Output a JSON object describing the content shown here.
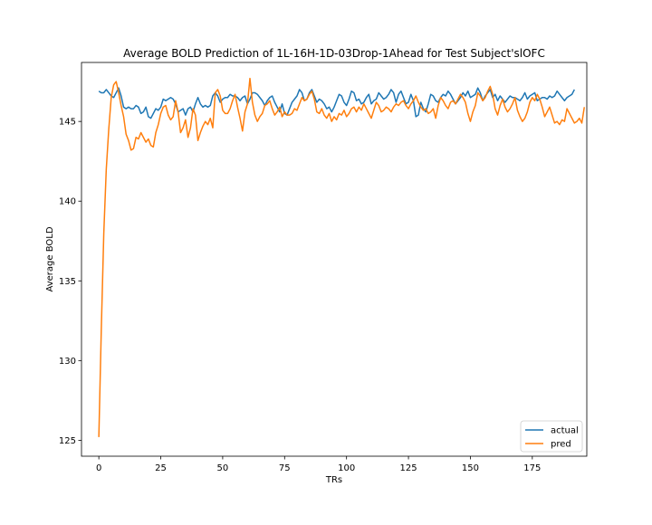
{
  "chart_data": {
    "type": "line",
    "title": "Average BOLD Prediction of 1L-16H-1D-03Drop-1Ahead for Test Subject'slOFC",
    "xlabel": "TRs",
    "ylabel": "Average BOLD",
    "xlim": [
      -7,
      197
    ],
    "ylim": [
      124,
      148.7
    ],
    "xticks": [
      0,
      25,
      50,
      75,
      100,
      125,
      150,
      175
    ],
    "yticks": [
      125,
      130,
      135,
      140,
      145
    ],
    "grid": false,
    "legend": "lower-right",
    "series": [
      {
        "name": "actual",
        "color": "#1f77b4",
        "values": [
          146.9,
          146.8,
          146.8,
          147.0,
          146.8,
          146.6,
          146.5,
          146.8,
          147.1,
          146.6,
          145.9,
          145.8,
          145.9,
          145.8,
          145.8,
          146.0,
          145.9,
          145.5,
          145.6,
          145.9,
          145.3,
          145.2,
          145.5,
          145.8,
          145.7,
          145.9,
          146.4,
          146.3,
          146.4,
          146.5,
          146.4,
          146.1,
          145.6,
          145.7,
          145.8,
          145.4,
          145.8,
          145.9,
          145.6,
          146.1,
          146.5,
          146.1,
          145.9,
          146.0,
          145.9,
          146.0,
          146.6,
          146.8,
          146.6,
          146.2,
          146.4,
          146.5,
          146.5,
          146.7,
          146.6,
          146.6,
          146.5,
          146.3,
          146.5,
          146.6,
          146.1,
          146.4,
          146.8,
          146.8,
          146.7,
          146.5,
          146.3,
          146.0,
          146.3,
          146.5,
          146.6,
          146.2,
          145.9,
          145.6,
          146.1,
          145.5,
          145.4,
          145.8,
          146.2,
          146.4,
          146.6,
          147.0,
          146.8,
          146.3,
          146.4,
          146.8,
          147.0,
          146.6,
          146.2,
          146.4,
          146.3,
          146.1,
          145.8,
          145.9,
          145.6,
          145.9,
          146.3,
          146.7,
          146.6,
          146.2,
          146.0,
          146.4,
          146.9,
          146.8,
          146.3,
          146.4,
          146.1,
          146.2,
          146.5,
          146.7,
          146.1,
          146.3,
          146.4,
          146.8,
          146.6,
          146.4,
          146.5,
          146.7,
          147.0,
          146.8,
          146.2,
          146.7,
          146.9,
          146.5,
          146.1,
          146.2,
          146.7,
          146.3,
          145.3,
          145.4,
          146.2,
          145.8,
          145.6,
          146.1,
          146.7,
          146.6,
          146.3,
          146.2,
          146.5,
          146.7,
          146.6,
          146.9,
          146.7,
          146.4,
          146.1,
          146.3,
          146.5,
          146.8,
          146.6,
          146.9,
          146.5,
          146.6,
          146.7,
          147.1,
          146.8,
          146.3,
          146.6,
          146.8,
          147.0,
          146.5,
          146.7,
          146.3,
          146.6,
          146.4,
          146.2,
          146.4,
          146.6,
          146.5,
          146.5,
          146.4,
          146.3,
          146.5,
          146.8,
          146.4,
          146.6,
          146.7,
          146.8,
          146.3,
          146.4,
          146.5,
          146.5,
          146.4,
          146.6,
          146.5,
          146.6,
          146.9,
          146.7,
          146.5,
          146.3,
          146.5,
          146.6,
          146.7,
          147.0
        ]
      },
      {
        "name": "pred",
        "color": "#ff7f0e",
        "values": [
          125.2,
          132.0,
          138.0,
          142.0,
          144.5,
          146.5,
          147.3,
          147.5,
          146.8,
          146.0,
          145.3,
          144.2,
          143.8,
          143.2,
          143.3,
          144.0,
          143.9,
          144.3,
          144.0,
          143.7,
          143.9,
          143.5,
          143.4,
          144.3,
          144.8,
          145.5,
          145.9,
          146.0,
          145.4,
          145.1,
          145.3,
          146.3,
          145.6,
          144.3,
          144.6,
          145.1,
          144.0,
          144.6,
          145.8,
          145.4,
          143.8,
          144.3,
          144.7,
          145.0,
          144.8,
          145.2,
          144.6,
          146.8,
          147.0,
          146.6,
          145.7,
          145.5,
          145.5,
          145.8,
          146.3,
          146.7,
          145.9,
          145.2,
          144.4,
          145.6,
          146.1,
          147.7,
          146.2,
          145.4,
          145.0,
          145.3,
          145.5,
          146.0,
          146.1,
          146.3,
          145.8,
          145.4,
          145.6,
          145.9,
          145.3,
          145.6,
          145.4,
          145.4,
          145.5,
          145.8,
          145.7,
          146.1,
          146.5,
          146.3,
          146.4,
          146.7,
          146.9,
          146.4,
          145.6,
          145.5,
          145.8,
          145.4,
          145.2,
          145.5,
          145.0,
          145.3,
          145.1,
          145.5,
          145.4,
          145.7,
          145.3,
          145.5,
          145.8,
          145.9,
          145.6,
          145.9,
          145.7,
          146.1,
          145.8,
          145.5,
          145.2,
          145.7,
          146.2,
          146.0,
          145.6,
          145.7,
          145.9,
          145.8,
          145.6,
          145.9,
          146.1,
          146.0,
          146.2,
          146.3,
          146.0,
          145.8,
          146.1,
          146.3,
          146.6,
          146.2,
          145.9,
          145.7,
          145.8,
          145.5,
          145.6,
          145.8,
          145.2,
          146.0,
          146.5,
          146.3,
          146.0,
          145.8,
          146.2,
          146.3,
          146.1,
          146.4,
          146.7,
          146.5,
          146.2,
          145.5,
          145.0,
          145.6,
          146.0,
          146.8,
          146.6,
          146.3,
          146.5,
          146.9,
          147.2,
          146.7,
          145.8,
          145.4,
          146.0,
          146.4,
          145.9,
          145.6,
          145.8,
          146.1,
          146.5,
          145.7,
          145.3,
          145.0,
          145.2,
          145.6,
          146.2,
          146.5,
          146.3,
          146.7,
          146.4,
          145.9,
          145.3,
          145.6,
          145.9,
          145.4,
          144.9,
          145.0,
          144.8,
          145.1,
          145.0,
          145.8,
          145.5,
          145.2,
          144.9,
          145.0,
          145.2,
          144.9,
          145.9
        ]
      }
    ]
  }
}
